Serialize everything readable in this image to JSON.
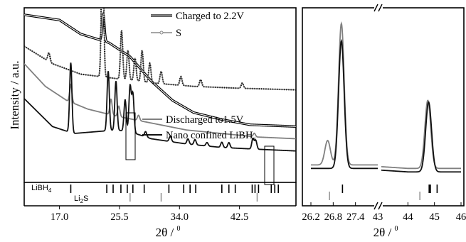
{
  "chart_data": [
    {
      "type": "line",
      "panel": "left",
      "ylabel": "Intensity / a.u.",
      "xlabel_base": "2θ / ",
      "xlabel_sup": "0",
      "xlim": [
        12.0,
        50.5
      ],
      "xticks": [
        "17.0",
        "25.5",
        "34.0",
        "42.5"
      ],
      "xtick_values": [
        17.0,
        25.5,
        34.0,
        42.5
      ],
      "grid": false,
      "legend_top": {
        "position": "top-right",
        "entries": [
          "Charged to 2.2V",
          "S"
        ]
      },
      "legend_bottom": {
        "position": "middle-right",
        "entries": [
          {
            "text": "Discharged to1.5V"
          },
          {
            "text": "Nano confined LiBH",
            "sub": "4"
          }
        ]
      },
      "reference_labels": [
        {
          "text": "LiBH",
          "sub": "4"
        },
        {
          "text": "Li",
          "sub": "2",
          "after": "S"
        }
      ],
      "series": [
        {
          "name": "Charged to 2.2V",
          "style": "double-line",
          "color": "#000000",
          "baseline_rel": [
            [
              12.0,
              0.96
            ],
            [
              17.0,
              0.93
            ],
            [
              20.0,
              0.85
            ],
            [
              24.0,
              0.8
            ],
            [
              27.0,
              0.72
            ],
            [
              30.0,
              0.58
            ],
            [
              33.0,
              0.47
            ],
            [
              36.0,
              0.4
            ],
            [
              40.0,
              0.36
            ],
            [
              44.0,
              0.33
            ],
            [
              50.5,
              0.32
            ]
          ],
          "peaks": [
            [
              23.2,
              0.15
            ]
          ]
        },
        {
          "name": "S",
          "style": "grey-markers",
          "color": "#888888",
          "baseline_rel": [
            [
              12.0,
              0.78
            ],
            [
              16.0,
              0.68
            ],
            [
              20.0,
              0.62
            ],
            [
              24.0,
              0.6
            ],
            [
              30.0,
              0.57
            ],
            [
              36.0,
              0.55
            ],
            [
              42.0,
              0.54
            ],
            [
              50.5,
              0.53
            ]
          ],
          "peaks": [
            [
              15.5,
              0.05
            ],
            [
              23.1,
              0.85
            ],
            [
              25.8,
              0.28
            ],
            [
              26.7,
              0.17
            ],
            [
              27.7,
              0.13
            ],
            [
              28.7,
              0.18
            ],
            [
              29.8,
              0.11
            ],
            [
              31.4,
              0.07
            ],
            [
              34.2,
              0.05
            ],
            [
              37.0,
              0.04
            ],
            [
              42.9,
              0.03
            ]
          ]
        },
        {
          "name": "Discharged to1.5V",
          "style": "line",
          "color": "#808080",
          "baseline_rel": [
            [
              12.0,
              0.68
            ],
            [
              15.0,
              0.55
            ],
            [
              18.0,
              0.47
            ],
            [
              21.0,
              0.42
            ],
            [
              25.0,
              0.38
            ],
            [
              30.0,
              0.34
            ],
            [
              35.0,
              0.3
            ],
            [
              40.0,
              0.28
            ],
            [
              45.0,
              0.26
            ],
            [
              50.5,
              0.25
            ]
          ],
          "peaks": [
            [
              18.6,
              0.1
            ],
            [
              24.3,
              0.09
            ],
            [
              25.4,
              0.06
            ],
            [
              28.2,
              0.03
            ],
            [
              44.6,
              0.02
            ]
          ]
        },
        {
          "name": "Nano confined LiBH4",
          "style": "line",
          "color": "#111111",
          "baseline_rel": [
            [
              12.0,
              0.48
            ],
            [
              16.0,
              0.32
            ],
            [
              19.0,
              0.28
            ],
            [
              22.0,
              0.29
            ],
            [
              25.0,
              0.3
            ],
            [
              27.0,
              0.29
            ],
            [
              30.0,
              0.25
            ],
            [
              35.0,
              0.22
            ],
            [
              40.0,
              0.2
            ],
            [
              45.0,
              0.19
            ],
            [
              50.5,
              0.18
            ]
          ],
          "peaks": [
            [
              18.6,
              0.4
            ],
            [
              23.9,
              0.34
            ],
            [
              25.0,
              0.28
            ],
            [
              26.3,
              0.18
            ],
            [
              27.0,
              0.26
            ],
            [
              27.4,
              0.22
            ],
            [
              29.2,
              0.03
            ],
            [
              32.7,
              0.03
            ],
            [
              35.2,
              0.03
            ],
            [
              36.2,
              0.03
            ],
            [
              37.9,
              0.02
            ],
            [
              40.0,
              0.03
            ],
            [
              41.0,
              0.03
            ],
            [
              44.4,
              0.06
            ],
            [
              44.8,
              0.05
            ]
          ]
        }
      ],
      "reference_ticks": {
        "LiBH4": [
          18.6,
          23.7,
          24.6,
          25.7,
          26.6,
          27.4,
          29.0,
          32.5,
          34.6,
          35.5,
          36.3,
          40.0,
          41.0,
          41.9,
          44.3,
          44.7,
          45.2,
          47.0,
          47.5,
          48.0
        ],
        "Li2S": [
          27.0,
          31.4,
          45.0
        ]
      }
    },
    {
      "type": "line",
      "panel": "right",
      "xlabel_base": "2θ / ",
      "xlabel_sup": "0",
      "xticks_left": [
        "26.2",
        "26.8",
        "27.4",
        "43"
      ],
      "xticks_left_values": [
        26.2,
        26.8,
        27.4,
        28.0
      ],
      "xticks_right": [
        "44",
        "45",
        "46"
      ],
      "xticks_right_values": [
        44.0,
        45.0,
        46.0
      ],
      "xlim_left": [
        26.2,
        28.0
      ],
      "xlim_right": [
        43.0,
        46.0
      ],
      "axis_break": true,
      "series": [
        {
          "name": "Discharged to1.5V",
          "color": "#808080",
          "segment_left": {
            "baseline_rel": [
              [
                26.2,
                0.1
              ],
              [
                26.9,
                0.1
              ],
              [
                27.4,
                0.1
              ],
              [
                27.7,
                0.1
              ],
              [
                28.0,
                0.1
              ]
            ],
            "peaks": [
              [
                26.65,
                0.14
              ],
              [
                27.02,
                0.81
              ]
            ]
          },
          "segment_right": {
            "baseline_rel": [
              [
                43.0,
                0.09
              ],
              [
                44.0,
                0.08
              ],
              [
                45.0,
                0.08
              ],
              [
                46.0,
                0.08
              ]
            ],
            "peaks": [
              [
                44.75,
                0.39
              ]
            ]
          }
        },
        {
          "name": "Nano confined LiBH4",
          "color": "#111111",
          "segment_left": {
            "baseline_rel": [
              [
                26.2,
                0.08
              ],
              [
                26.9,
                0.08
              ],
              [
                27.4,
                0.08
              ],
              [
                28.0,
                0.08
              ]
            ],
            "peaks": [
              [
                27.02,
                0.73
              ]
            ]
          },
          "segment_right": {
            "baseline_rel": [
              [
                43.0,
                0.07
              ],
              [
                44.0,
                0.06
              ],
              [
                45.0,
                0.06
              ],
              [
                46.0,
                0.06
              ]
            ],
            "peaks": [
              [
                44.78,
                0.4
              ]
            ]
          }
        }
      ],
      "reference_ticks": {
        "LiBH4_left": [
          27.05
        ],
        "Li2S_left": [
          26.7
        ],
        "LiBH4_right": [
          44.8,
          44.85,
          45.1
        ],
        "Li2S_right": [
          44.45
        ]
      }
    }
  ]
}
